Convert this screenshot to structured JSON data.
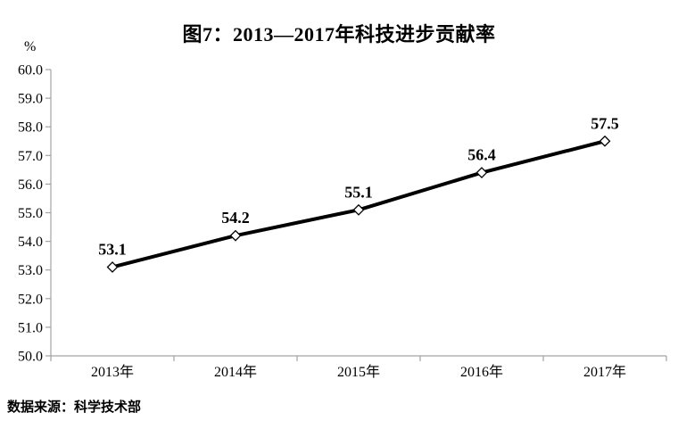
{
  "chart_data": {
    "type": "line",
    "title": "图7：2013—2017年科技进步贡献率",
    "unit": "%",
    "categories": [
      "2013年",
      "2014年",
      "2015年",
      "2016年",
      "2017年"
    ],
    "values": [
      53.1,
      54.2,
      55.1,
      56.4,
      57.5
    ],
    "data_labels": [
      "53.1",
      "54.2",
      "55.1",
      "56.4",
      "57.5"
    ],
    "ylim": [
      50.0,
      60.0
    ],
    "ytick_step": 1.0,
    "ytick_labels": [
      "50.0",
      "51.0",
      "52.0",
      "53.0",
      "54.0",
      "55.0",
      "56.0",
      "57.0",
      "58.0",
      "59.0",
      "60.0"
    ],
    "grid": false,
    "legend": "none",
    "line_color": "#000000",
    "marker": "diamond",
    "marker_fill": "#ffffff",
    "axis_color": "#a3a3a3",
    "label_color": "#000000"
  },
  "source_note": "数据来源：科学技术部"
}
